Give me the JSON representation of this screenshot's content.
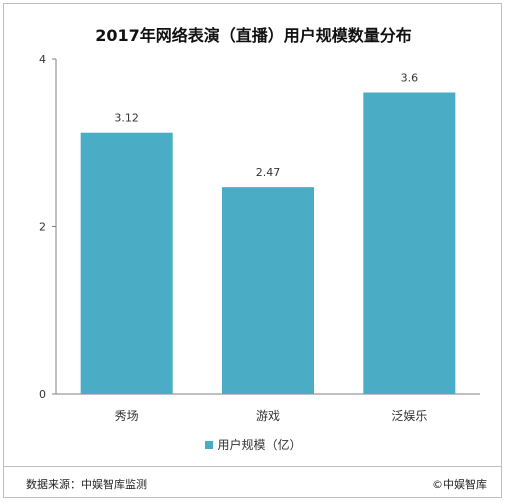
{
  "title": "2017年网络表演（直播）用户规模数量分布",
  "legend": {
    "label": "用户规模（亿）"
  },
  "footer": {
    "source": "数据来源：中娱智库监测",
    "copyright": "©中娱智库"
  },
  "colors": {
    "bar": "#4bacc6",
    "axis": "#808080",
    "text": "#333333"
  },
  "chart_data": {
    "type": "bar",
    "title": "2017年网络表演（直播）用户规模数量分布",
    "categories": [
      "秀场",
      "游戏",
      "泛娱乐"
    ],
    "series": [
      {
        "name": "用户规模（亿）",
        "values": [
          3.12,
          2.47,
          3.6
        ]
      }
    ],
    "data_labels": [
      "3.12",
      "2.47",
      "3.6"
    ],
    "ylim": [
      0,
      4
    ],
    "yticks": [
      0,
      2,
      4
    ],
    "grid": false,
    "legend_position": "bottom"
  }
}
